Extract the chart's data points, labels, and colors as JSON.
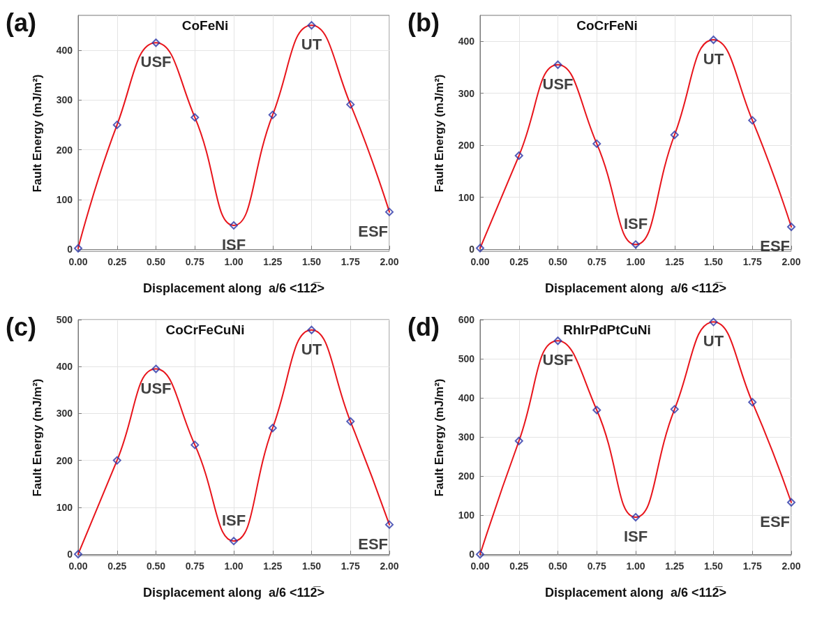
{
  "chart_data": [
    {
      "type": "line",
      "title": "CoFeNi",
      "xlabel": "Displacement along  a/6 <112̅>",
      "ylabel": "Fault Energy (mJ/m²)",
      "x": [
        0,
        0.25,
        0.5,
        0.75,
        1.0,
        1.25,
        1.5,
        1.75,
        2.0
      ],
      "series": [
        {
          "color": "#e8141b",
          "marker": "none",
          "values": [
            2,
            250,
            415,
            265,
            48,
            270,
            450,
            291,
            75
          ]
        },
        {
          "type": "scatter",
          "color": "#2a35a8",
          "marker": "diamond",
          "values": [
            2,
            250,
            415,
            265,
            48,
            270,
            450,
            291,
            75
          ]
        }
      ],
      "xlim": [
        0,
        2
      ],
      "xticks": [
        {
          "value": 0,
          "label": "0.00"
        },
        {
          "value": 0.25,
          "label": "0.25"
        },
        {
          "value": 0.5,
          "label": "0.50"
        },
        {
          "value": 0.75,
          "label": "0.75"
        },
        {
          "value": 1,
          "label": "1.00"
        },
        {
          "value": 1.25,
          "label": "1.25"
        },
        {
          "value": 1.5,
          "label": "1.50"
        },
        {
          "value": 1.75,
          "label": "1.75"
        },
        {
          "value": 2,
          "label": "2.00"
        }
      ],
      "ylim": [
        -4,
        470
      ],
      "yticks": [
        0,
        100,
        200,
        300,
        400
      ],
      "grid": true,
      "annotations": [
        "(a)",
        {
          "text": "USF",
          "x": 0.5,
          "y": 415
        },
        {
          "text": "ISF",
          "x": 1.0,
          "y": 48
        },
        {
          "text": "UT",
          "x": 1.5,
          "y": 450
        },
        {
          "text": "ESF",
          "x": 2.0,
          "y": 75
        }
      ]
    },
    {
      "type": "line",
      "title": "CoCrFeNi",
      "xlabel": "Displacement along  a/6 <112̅>",
      "ylabel": "Fault Energy (mJ/m²)",
      "x": [
        0,
        0.25,
        0.5,
        0.75,
        1.0,
        1.25,
        1.5,
        1.75,
        2.0
      ],
      "series": [
        {
          "color": "#e8141b",
          "marker": "none",
          "values": [
            2,
            180,
            355,
            203,
            9,
            220,
            403,
            248,
            43
          ]
        },
        {
          "type": "scatter",
          "color": "#2a35a8",
          "marker": "diamond",
          "values": [
            2,
            180,
            355,
            203,
            9,
            220,
            403,
            248,
            43
          ]
        }
      ],
      "xlim": [
        0,
        2
      ],
      "xticks": [
        {
          "value": 0,
          "label": "0.00"
        },
        {
          "value": 0.25,
          "label": "0.25"
        },
        {
          "value": 0.5,
          "label": "0.50"
        },
        {
          "value": 0.75,
          "label": "0.75"
        },
        {
          "value": 1,
          "label": "1.00"
        },
        {
          "value": 1.25,
          "label": "1.25"
        },
        {
          "value": 1.5,
          "label": "1.50"
        },
        {
          "value": 1.75,
          "label": "1.75"
        },
        {
          "value": 2,
          "label": "2.00"
        }
      ],
      "ylim": [
        -4,
        450
      ],
      "yticks": [
        0,
        100,
        200,
        300,
        400
      ],
      "grid": true,
      "annotations": [
        "(b)",
        {
          "text": "USF",
          "x": 0.5,
          "y": 355
        },
        {
          "text": "ISF",
          "x": 1.0,
          "y": 9
        },
        {
          "text": "UT",
          "x": 1.5,
          "y": 403
        },
        {
          "text": "ESF",
          "x": 2.0,
          "y": 43
        }
      ]
    },
    {
      "type": "line",
      "title": "CoCrFeCuNi",
      "xlabel": "Displacement along  a/6 <112̅>",
      "ylabel": "Fault Energy (mJ/m²)",
      "x": [
        0,
        0.25,
        0.5,
        0.75,
        1.0,
        1.25,
        1.5,
        1.75,
        2.0
      ],
      "series": [
        {
          "color": "#e8141b",
          "marker": "none",
          "values": [
            0,
            200,
            395,
            233,
            28,
            269,
            478,
            283,
            63
          ]
        },
        {
          "type": "scatter",
          "color": "#2a35a8",
          "marker": "diamond",
          "values": [
            0,
            200,
            395,
            233,
            28,
            269,
            478,
            283,
            63
          ]
        }
      ],
      "xlim": [
        0,
        2
      ],
      "xticks": [
        {
          "value": 0,
          "label": "0.00"
        },
        {
          "value": 0.25,
          "label": "0.25"
        },
        {
          "value": 0.5,
          "label": "0.50"
        },
        {
          "value": 0.75,
          "label": "0.75"
        },
        {
          "value": 1,
          "label": "1.00"
        },
        {
          "value": 1.25,
          "label": "1.25"
        },
        {
          "value": 1.5,
          "label": "1.50"
        },
        {
          "value": 1.75,
          "label": "1.75"
        },
        {
          "value": 2,
          "label": "2.00"
        }
      ],
      "ylim": [
        -3,
        500
      ],
      "yticks": [
        0,
        100,
        200,
        300,
        400,
        500
      ],
      "grid": true,
      "annotations": [
        "(c)",
        {
          "text": "USF",
          "x": 0.5,
          "y": 395
        },
        {
          "text": "ISF",
          "x": 1.0,
          "y": 28
        },
        {
          "text": "UT",
          "x": 1.5,
          "y": 478
        },
        {
          "text": "ESF",
          "x": 2.0,
          "y": 63
        }
      ]
    },
    {
      "type": "line",
      "title": "RhIrPdPtCuNi",
      "xlabel": "Displacement along  a/6 <112̅>",
      "ylabel": "Fault Energy (mJ/m²)",
      "x": [
        0,
        0.25,
        0.5,
        0.75,
        1.0,
        1.25,
        1.5,
        1.75,
        2.0
      ],
      "series": [
        {
          "color": "#e8141b",
          "marker": "none",
          "values": [
            0,
            290,
            546,
            369,
            95,
            371,
            594,
            389,
            133
          ]
        },
        {
          "type": "scatter",
          "color": "#2a35a8",
          "marker": "diamond",
          "values": [
            0,
            290,
            546,
            369,
            95,
            371,
            594,
            389,
            133
          ]
        }
      ],
      "xlim": [
        0,
        2
      ],
      "xticks": [
        {
          "value": 0,
          "label": "0.00"
        },
        {
          "value": 0.25,
          "label": "0.25"
        },
        {
          "value": 0.5,
          "label": "0.50"
        },
        {
          "value": 0.75,
          "label": "0.75"
        },
        {
          "value": 1,
          "label": "1.00"
        },
        {
          "value": 1.25,
          "label": "1.25"
        },
        {
          "value": 1.5,
          "label": "1.50"
        },
        {
          "value": 1.75,
          "label": "1.75"
        },
        {
          "value": 2,
          "label": "2.00"
        }
      ],
      "ylim": [
        -3,
        600
      ],
      "yticks": [
        0,
        100,
        200,
        300,
        400,
        500,
        600
      ],
      "grid": true,
      "annotations": [
        "(d)",
        {
          "text": "USF",
          "x": 0.5,
          "y": 546
        },
        {
          "text": "ISF",
          "x": 1.0,
          "y": 95
        },
        {
          "text": "UT",
          "x": 1.5,
          "y": 594
        },
        {
          "text": "ESF",
          "x": 2.0,
          "y": 133
        }
      ]
    }
  ]
}
